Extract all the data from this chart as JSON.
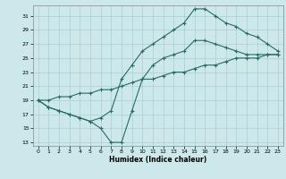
{
  "title": "",
  "xlabel": "Humidex (Indice chaleur)",
  "ylabel": "",
  "bg_color": "#cce8eb",
  "grid_color": "#aacfd3",
  "line_color": "#2a6b60",
  "xlim": [
    -0.5,
    23.5
  ],
  "ylim": [
    12.5,
    32.5
  ],
  "xticks": [
    0,
    1,
    2,
    3,
    4,
    5,
    6,
    7,
    8,
    9,
    10,
    11,
    12,
    13,
    14,
    15,
    16,
    17,
    18,
    19,
    20,
    21,
    22,
    23
  ],
  "yticks": [
    13,
    15,
    17,
    19,
    21,
    23,
    25,
    27,
    29,
    31
  ],
  "curve1_x": [
    0,
    1,
    2,
    3,
    4,
    5,
    6,
    7,
    8,
    9,
    10,
    11,
    12,
    13,
    14,
    15,
    16,
    17,
    18,
    19,
    20,
    21,
    22,
    23
  ],
  "curve1_y": [
    19,
    18,
    17.5,
    17,
    16.5,
    16,
    15,
    13,
    13,
    17.5,
    22,
    24,
    25,
    25.5,
    26,
    27.5,
    27.5,
    27,
    26.5,
    26,
    25.5,
    25.5,
    25.5,
    25.5
  ],
  "curve2_x": [
    0,
    1,
    2,
    3,
    4,
    5,
    6,
    7,
    8,
    9,
    10,
    11,
    12,
    13,
    14,
    15,
    16,
    17,
    18,
    19,
    20,
    21,
    22,
    23
  ],
  "curve2_y": [
    19,
    19,
    19.5,
    19.5,
    20,
    20,
    20.5,
    20.5,
    21,
    21.5,
    22,
    22,
    22.5,
    23,
    23,
    23.5,
    24,
    24,
    24.5,
    25,
    25,
    25,
    25.5,
    25.5
  ],
  "curve3_x": [
    0,
    1,
    2,
    3,
    4,
    5,
    6,
    7,
    8,
    9,
    10,
    11,
    12,
    13,
    14,
    15,
    16,
    17,
    18,
    19,
    20,
    21,
    22,
    23
  ],
  "curve3_y": [
    19,
    18,
    17.5,
    17,
    16.5,
    16,
    16.5,
    17.5,
    22,
    24,
    26,
    27,
    28,
    29,
    30,
    32,
    32,
    31,
    30,
    29.5,
    28.5,
    28,
    27,
    26
  ]
}
